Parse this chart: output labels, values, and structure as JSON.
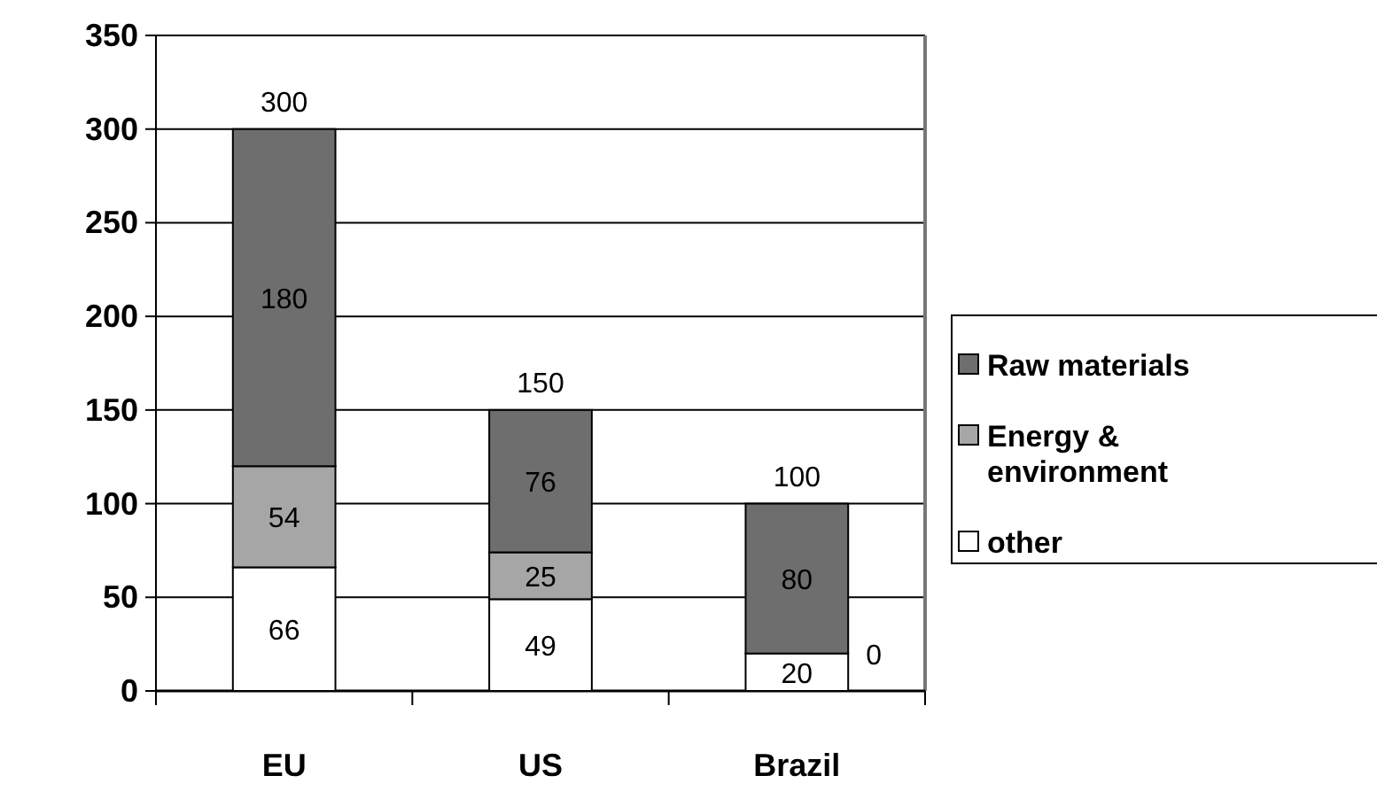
{
  "chart_data": {
    "type": "bar",
    "stacked": true,
    "categories": [
      "EU",
      "US",
      "Brazil"
    ],
    "series": [
      {
        "name": "other",
        "color": "#ffffff",
        "values": [
          66,
          49,
          20
        ],
        "value_labels": [
          "66",
          "49",
          "20"
        ]
      },
      {
        "name": "Energy & environment",
        "color": "#a6a6a6",
        "values": [
          54,
          25,
          0
        ],
        "value_labels": [
          "54",
          "25",
          null
        ]
      },
      {
        "name": "Raw materials",
        "color": "#6e6e6e",
        "values": [
          180,
          76,
          80
        ],
        "value_labels": [
          "180",
          "76",
          "80"
        ]
      }
    ],
    "annotations": [
      {
        "text": "0",
        "x": "Brazil",
        "y": 20
      }
    ],
    "totals": [
      "300",
      "150",
      "100"
    ],
    "ylim": [
      0,
      350
    ],
    "yticks": [
      0,
      50,
      100,
      150,
      200,
      250,
      300,
      350
    ],
    "grid": "y",
    "legend": "right"
  }
}
